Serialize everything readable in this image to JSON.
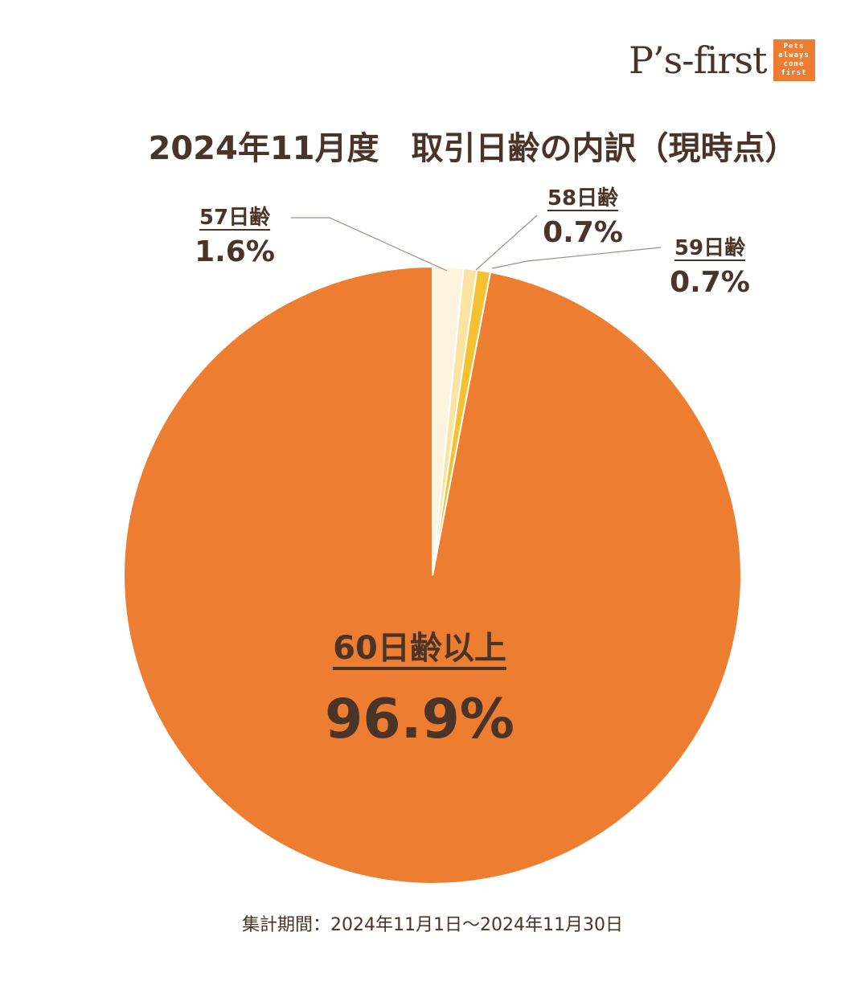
{
  "logo": {
    "text": "P’s-first",
    "badge_lines": [
      "Pets",
      "always",
      "come",
      "first"
    ]
  },
  "chart_data": {
    "type": "pie",
    "title": "2024年11月度　取引日齢の内訳（現時点）",
    "start_angle_deg": 0,
    "direction": "counterclockwise",
    "slices": [
      {
        "label": "60日齢以上",
        "value": 96.9,
        "display": "96.9%",
        "color": "#ed7d31"
      },
      {
        "label": "59日齢",
        "value": 0.7,
        "display": "0.7%",
        "color": "#f5c131"
      },
      {
        "label": "58日齢",
        "value": 0.7,
        "display": "0.7%",
        "color": "#fbe3a1"
      },
      {
        "label": "57日齢",
        "value": 1.6,
        "display": "1.6%",
        "color": "#fdf4df"
      }
    ],
    "footer": "集計期間：2024年11月1日～2024年11月30日"
  }
}
